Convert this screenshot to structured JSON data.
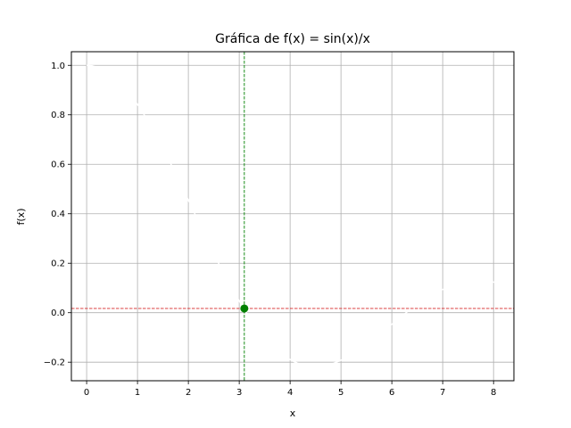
{
  "chart_data": {
    "type": "line",
    "title": "Gráfica de f(x) = sin(x)/x",
    "xlabel": "x",
    "ylabel": "f(x)",
    "xlim": [
      -0.3,
      8.4
    ],
    "ylim": [
      -0.275,
      1.055
    ],
    "xticks": [
      0,
      1,
      2,
      3,
      4,
      5,
      6,
      7,
      8
    ],
    "xtick_labels": [
      "0",
      "1",
      "2",
      "3",
      "4",
      "5",
      "6",
      "7",
      "8"
    ],
    "yticks": [
      -0.2,
      0.0,
      0.2,
      0.4,
      0.6,
      0.8,
      1.0
    ],
    "ytick_labels": [
      "−0.2",
      "0.0",
      "0.2",
      "0.4",
      "0.6",
      "0.8",
      "1.0"
    ],
    "grid": true,
    "series": [
      {
        "color": "#ffffff",
        "function": "sin(x)/x",
        "x_range": [
          0,
          8.4
        ]
      }
    ],
    "reference_lines": [
      {
        "orientation": "horizontal",
        "value": 0.017,
        "color": "#d62728",
        "style": "dashed"
      },
      {
        "orientation": "vertical",
        "value": 3.1,
        "color": "#008000",
        "style": "dashed"
      }
    ],
    "points": [
      {
        "x": 3.1,
        "y": 0.017,
        "color": "#008000"
      }
    ],
    "colors": {
      "grid": "#b0b0b0",
      "axes": "#000000",
      "background": "#ffffff"
    }
  }
}
